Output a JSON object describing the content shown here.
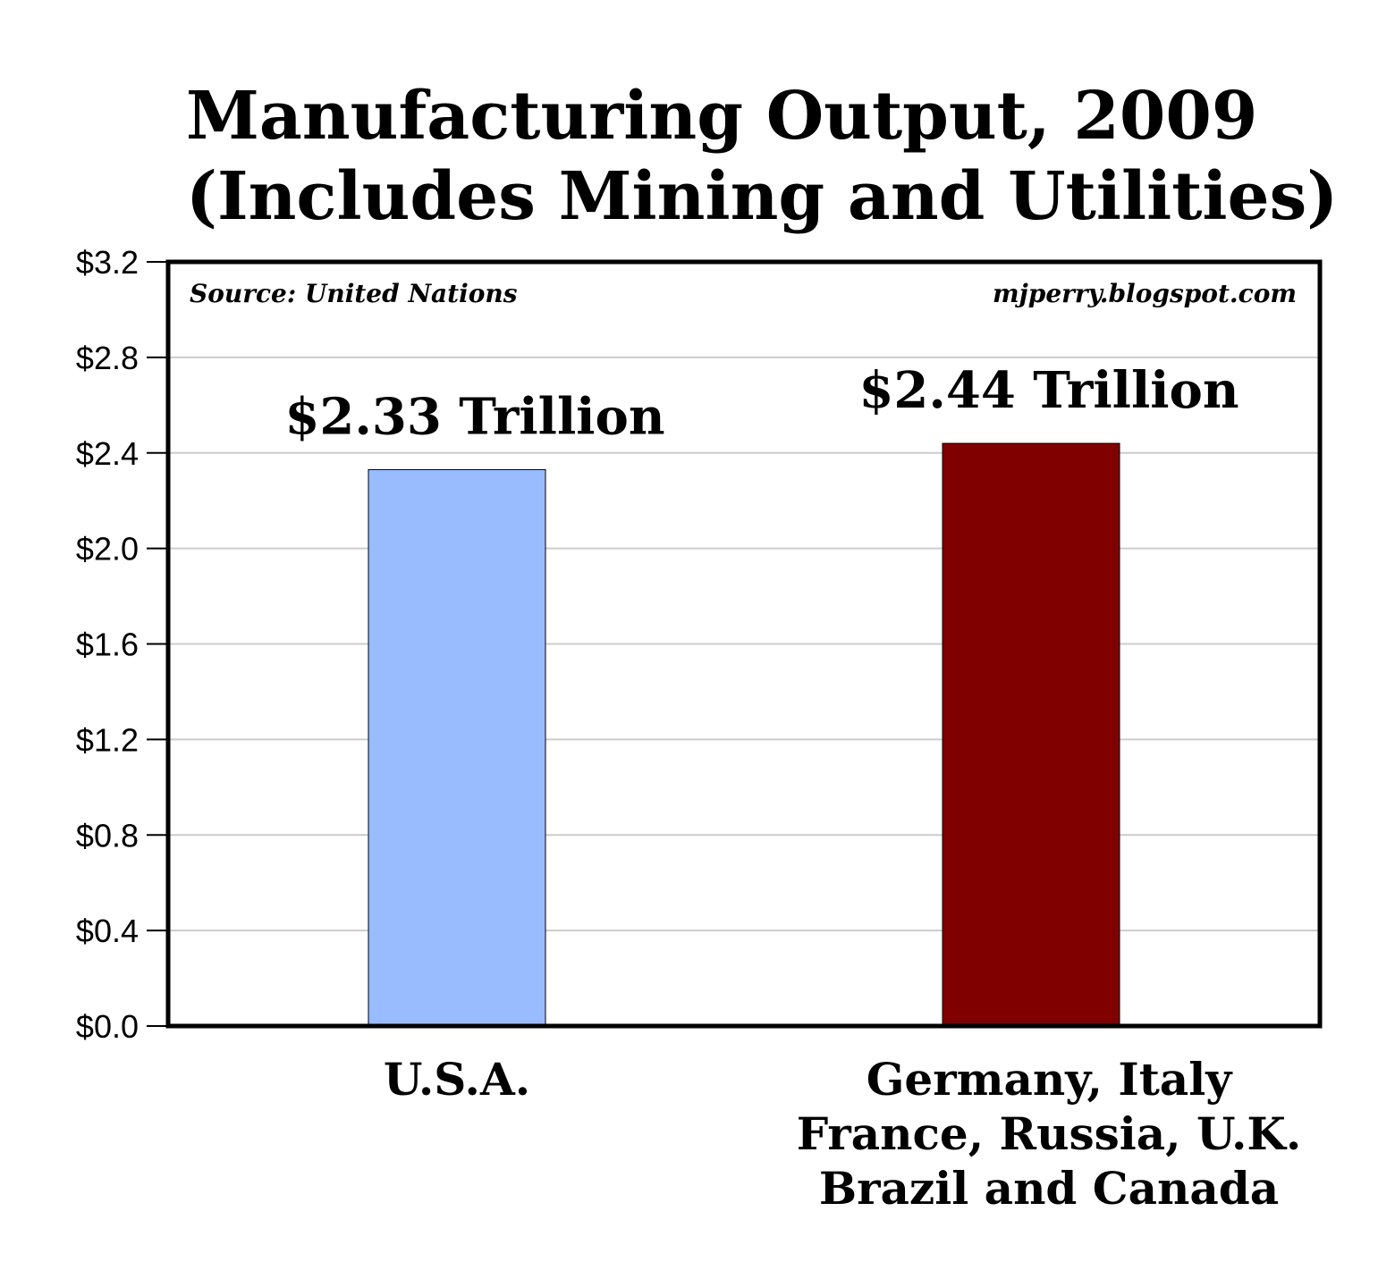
{
  "chart_data": {
    "type": "bar",
    "title": [
      "Manufacturing Output, 2009",
      "(Includes Mining and Utilities)"
    ],
    "source": "Source: United Nations",
    "watermark": "mjperry.blogspot.com",
    "categories": [
      [
        "U.S.A."
      ],
      [
        "Germany, Italy",
        "France, Russia, U.K.",
        "Brazil and Canada"
      ]
    ],
    "values": [
      2.33,
      2.44
    ],
    "data_labels": [
      "$2.33 Trillion",
      "$2.44 Trillion"
    ],
    "colors": [
      "#99bbff",
      "#800000"
    ],
    "ylim": [
      0,
      3.2
    ],
    "yticks": [
      "$0.0",
      "$0.4",
      "$0.8",
      "$1.2",
      "$1.6",
      "$2.0",
      "$2.4",
      "$2.8",
      "$3.2"
    ],
    "grid": true
  }
}
